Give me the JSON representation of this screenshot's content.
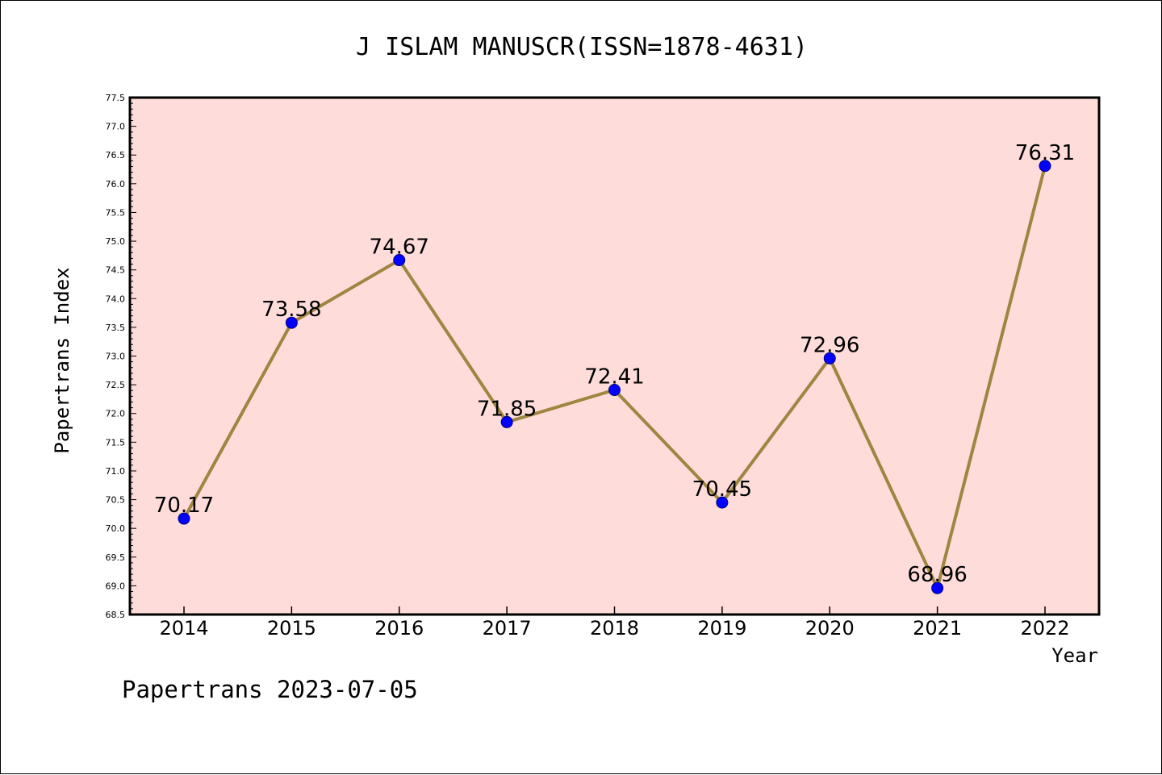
{
  "chart_data": {
    "type": "line",
    "title": "J ISLAM MANUSCR(ISSN=1878-4631)",
    "xlabel": "Year",
    "ylabel": "Papertrans Index",
    "categories": [
      "2014",
      "2015",
      "2016",
      "2017",
      "2018",
      "2019",
      "2020",
      "2021",
      "2022"
    ],
    "series": [
      {
        "values": [
          70.17,
          73.58,
          74.67,
          71.85,
          72.41,
          70.45,
          72.96,
          68.96,
          76.31
        ],
        "data_labels": [
          "70.17",
          "73.58",
          "74.67",
          "71.85",
          "72.41",
          "70.45",
          "72.96",
          "68.96",
          "76.31"
        ]
      }
    ],
    "ylim": [
      68.5,
      77.5
    ],
    "yticks": [
      "68.5",
      "69.0",
      "69.5",
      "70.0",
      "70.5",
      "71.0",
      "71.5",
      "72.0",
      "72.5",
      "73.0",
      "73.5",
      "74.0",
      "74.5",
      "75.0",
      "75.5",
      "76.0",
      "76.5",
      "77.0",
      "77.5"
    ],
    "grid": false,
    "legend": "none",
    "colors": {
      "plot_background": "#fddcda",
      "line": "#a08540",
      "marker_fill": "#0000ff",
      "marker_edge": "#00007a"
    }
  },
  "footer": "Papertrans 2023-07-05"
}
